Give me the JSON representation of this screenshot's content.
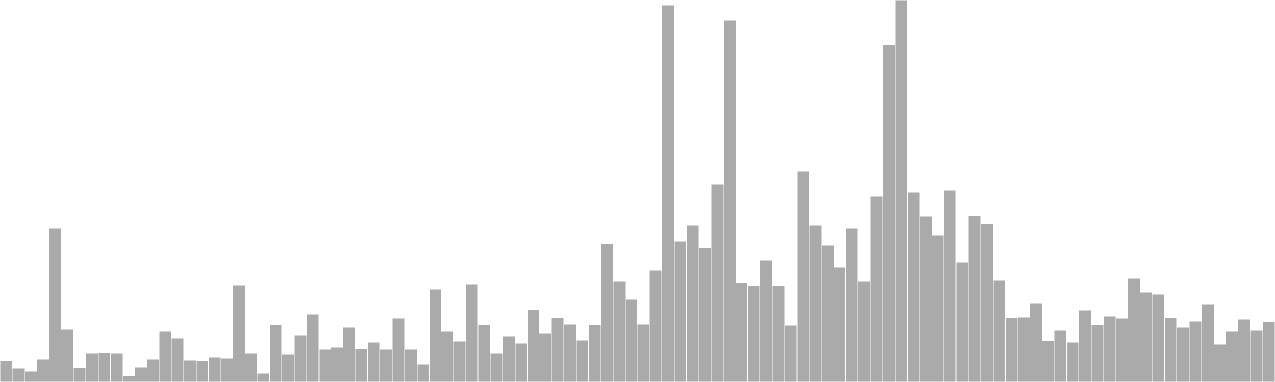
{
  "chart_data": {
    "type": "bar",
    "title": "",
    "xlabel": "",
    "ylabel": "",
    "ylim": [
      0,
      480
    ],
    "grid": false,
    "legend": "none",
    "bar_color": "#aaaaaa",
    "background": "#ffffff",
    "values": [
      27,
      17,
      14,
      29,
      193,
      66,
      18,
      36,
      37,
      36,
      8,
      19,
      29,
      64,
      55,
      28,
      27,
      31,
      30,
      122,
      36,
      11,
      72,
      35,
      59,
      85,
      41,
      44,
      69,
      42,
      50,
      41,
      80,
      41,
      22,
      117,
      64,
      51,
      123,
      72,
      36,
      58,
      49,
      91,
      61,
      81,
      73,
      53,
      72,
      174,
      127,
      104,
      73,
      141,
      474,
      177,
      197,
      169,
      249,
      455,
      125,
      121,
      153,
      121,
      71,
      265,
      197,
      172,
      144,
      193,
      127,
      234,
      424,
      480,
      239,
      208,
      185,
      241,
      151,
      209,
      199,
      128,
      81,
      82,
      99,
      52,
      65,
      50,
      90,
      72,
      83,
      80,
      131,
      113,
      110,
      81,
      69,
      77,
      98,
      48,
      64,
      79,
      65,
      76
    ]
  }
}
